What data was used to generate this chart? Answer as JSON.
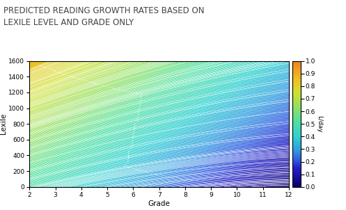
{
  "title": "PREDICTED READING GROWTH RATES BASED ON\nLEXILE LEVEL AND GRADE ONLY",
  "xlabel": "Grade",
  "ylabel": "Lexile",
  "colorbar_label": "L/day",
  "xlim": [
    2,
    12
  ],
  "ylim": [
    0,
    1600
  ],
  "xticks": [
    2,
    3,
    4,
    5,
    6,
    7,
    8,
    9,
    10,
    11,
    12
  ],
  "yticks": [
    0,
    200,
    400,
    600,
    800,
    1000,
    1200,
    1400,
    1600
  ],
  "colorbar_ticks": [
    0,
    0.1,
    0.2,
    0.3,
    0.4,
    0.5,
    0.6,
    0.7,
    0.8,
    0.9,
    1.0
  ],
  "background_color": "#ffffff",
  "title_fontsize": 8.5,
  "axis_fontsize": 7.5,
  "tick_fontsize": 6.5,
  "colorbar_fontsize": 6.5,
  "grade_min": 2,
  "grade_max": 12,
  "lexile_min": 0,
  "lexile_max": 1600,
  "cmap_colors": [
    "#08006a",
    "#1a0aa0",
    "#2020c8",
    "#3060e0",
    "#30a0e0",
    "#30d0d0",
    "#50e0a0",
    "#90e060",
    "#d0e030",
    "#f0c020",
    "#f0a020",
    "#f08020"
  ],
  "cmap_positions": [
    0.0,
    0.08,
    0.15,
    0.22,
    0.3,
    0.4,
    0.52,
    0.63,
    0.75,
    0.85,
    0.93,
    1.0
  ]
}
